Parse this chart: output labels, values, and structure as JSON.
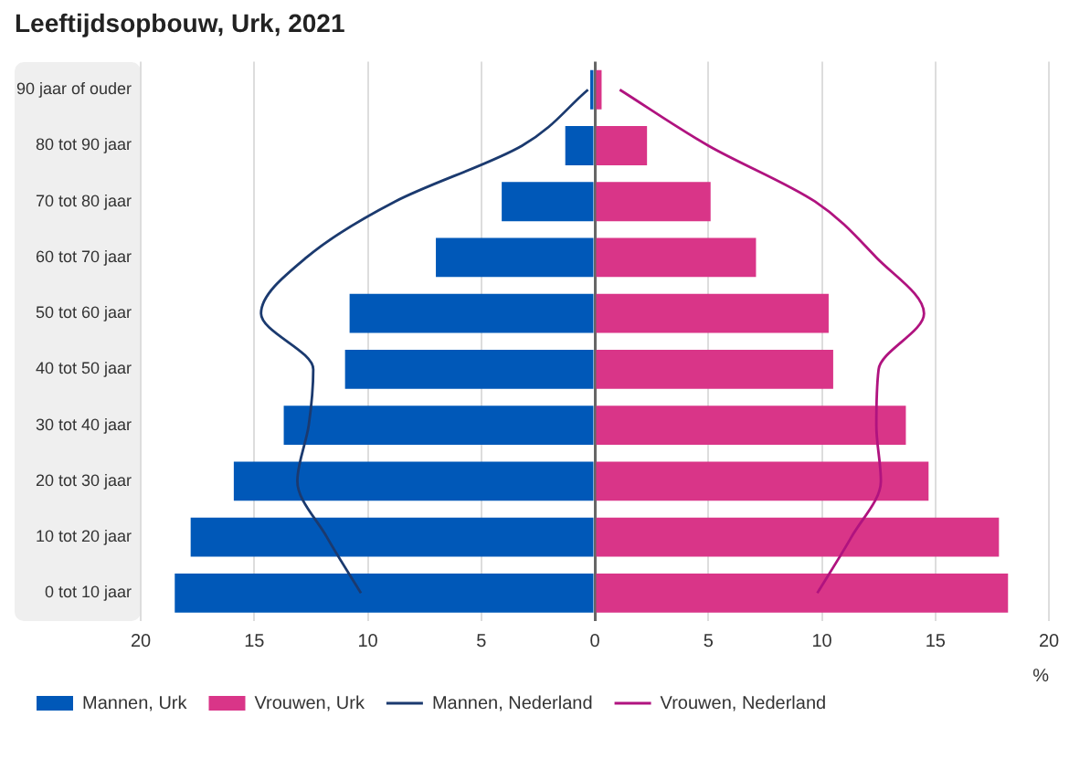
{
  "chart_data": {
    "type": "bar",
    "orientation": "horizontal",
    "stacked": true,
    "title": "Leeftijdsopbouw, Urk, 2021",
    "xlabel": "%",
    "categories": [
      "90 jaar of ouder",
      "80 tot 90 jaar",
      "70 tot 80 jaar",
      "60 tot 70 jaar",
      "50 tot 60 jaar",
      "40 tot 50 jaar",
      "30 tot 40 jaar",
      "20 tot 30 jaar",
      "10 tot 20 jaar",
      "0 tot 10 jaar"
    ],
    "series": [
      {
        "name": "Mannen, Urk",
        "color": "#0058b8",
        "values": [
          -0.2,
          -1.3,
          -4.1,
          -7.0,
          -10.8,
          -11.0,
          -13.7,
          -15.9,
          -17.8,
          -18.5
        ]
      },
      {
        "name": "Vrouwen, Urk",
        "color": "#d93588",
        "values": [
          0.3,
          2.3,
          5.1,
          7.1,
          10.3,
          10.5,
          13.7,
          14.7,
          17.8,
          18.2
        ]
      },
      {
        "name": "Mannen, Nederland",
        "type": "line",
        "color": "#1b3a6f",
        "values": [
          -0.3,
          -3.2,
          -8.8,
          -12.7,
          -14.7,
          -12.4,
          -12.6,
          -13.1,
          -11.8,
          -10.3
        ]
      },
      {
        "name": "Vrouwen, Nederland",
        "type": "line",
        "color": "#b0137f",
        "values": [
          1.1,
          5.0,
          9.7,
          12.4,
          14.5,
          12.5,
          12.4,
          12.6,
          11.3,
          9.8
        ]
      }
    ],
    "xlim": [
      -20,
      20
    ],
    "xticks": [
      {
        "value": -20,
        "label": "20"
      },
      {
        "value": -15,
        "label": "15"
      },
      {
        "value": -10,
        "label": "10"
      },
      {
        "value": -5,
        "label": "5"
      },
      0,
      5,
      10,
      15,
      20
    ],
    "grid": "x",
    "legend": "bottom left",
    "marker": "none"
  }
}
